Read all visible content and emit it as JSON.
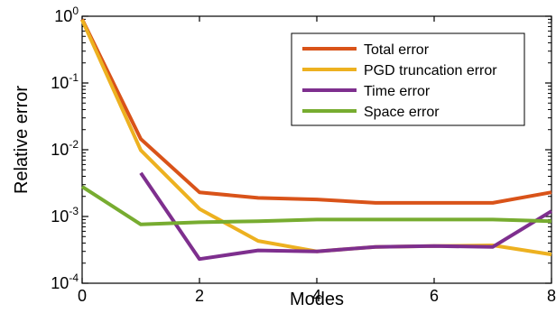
{
  "chart_data": {
    "type": "line",
    "xlabel": "Modes",
    "ylabel": "Relative error",
    "xlim": [
      0,
      8
    ],
    "ylim": [
      0.0001,
      1
    ],
    "yscale": "log",
    "xticks": [
      {
        "value": 0,
        "label": "0"
      },
      {
        "value": 2,
        "label": "2"
      },
      {
        "value": 4,
        "label": "4"
      },
      {
        "value": 6,
        "label": "6"
      },
      {
        "value": 8,
        "label": "8"
      }
    ],
    "yticks": [
      {
        "value": 1,
        "base": "10",
        "exp": "0"
      },
      {
        "value": 0.1,
        "base": "10",
        "exp": "-1"
      },
      {
        "value": 0.01,
        "base": "10",
        "exp": "-2"
      },
      {
        "value": 0.001,
        "base": "10",
        "exp": "-3"
      },
      {
        "value": 0.0001,
        "base": "10",
        "exp": "-4"
      }
    ],
    "grid": false,
    "legend_position": "top-right",
    "series": [
      {
        "name": "Total error",
        "color": "#d95319",
        "x": [
          0,
          1,
          2,
          3,
          4,
          5,
          6,
          7,
          8
        ],
        "y": [
          0.9,
          0.0145,
          0.0023,
          0.0019,
          0.0018,
          0.0016,
          0.0016,
          0.0016,
          0.0023
        ]
      },
      {
        "name": "PGD truncation error",
        "color": "#edb120",
        "x": [
          0,
          1,
          2,
          3,
          4,
          5,
          6,
          7,
          8
        ],
        "y": [
          0.88,
          0.0098,
          0.0013,
          0.00043,
          0.0003,
          0.00035,
          0.00036,
          0.00037,
          0.00027
        ]
      },
      {
        "name": "Time error",
        "color": "#7e2f8e",
        "x": [
          1,
          2,
          3,
          4,
          5,
          6,
          7,
          8
        ],
        "y": [
          0.0045,
          0.00023,
          0.00031,
          0.0003,
          0.00035,
          0.00036,
          0.00035,
          0.0012
        ]
      },
      {
        "name": "Space error",
        "color": "#77ac30",
        "x": [
          0,
          1,
          2,
          3,
          4,
          5,
          6,
          7,
          8
        ],
        "y": [
          0.0028,
          0.00076,
          0.00082,
          0.00085,
          0.0009,
          0.0009,
          0.0009,
          0.0009,
          0.00085
        ]
      }
    ]
  }
}
